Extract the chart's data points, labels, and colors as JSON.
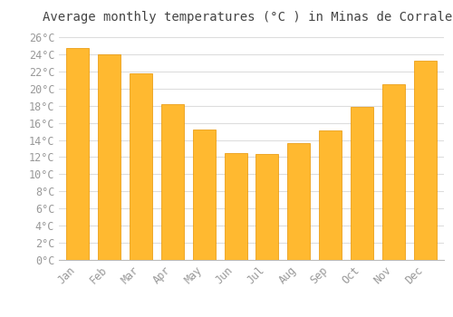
{
  "title": "Average monthly temperatures (°C ) in Minas de Corrales",
  "months": [
    "Jan",
    "Feb",
    "Mar",
    "Apr",
    "May",
    "Jun",
    "Jul",
    "Aug",
    "Sep",
    "Oct",
    "Nov",
    "Dec"
  ],
  "values": [
    24.7,
    24.0,
    21.8,
    18.2,
    15.2,
    12.5,
    12.4,
    13.6,
    15.1,
    17.9,
    20.5,
    23.2
  ],
  "bar_color_top": "#FFB930",
  "bar_color_bottom": "#FFA500",
  "bar_edge_color": "#E89400",
  "ylim": [
    0,
    27
  ],
  "background_color": "#FFFFFF",
  "grid_color": "#DDDDDD",
  "title_fontsize": 10,
  "tick_fontsize": 8.5,
  "tick_color": "#999999",
  "title_color": "#444444"
}
